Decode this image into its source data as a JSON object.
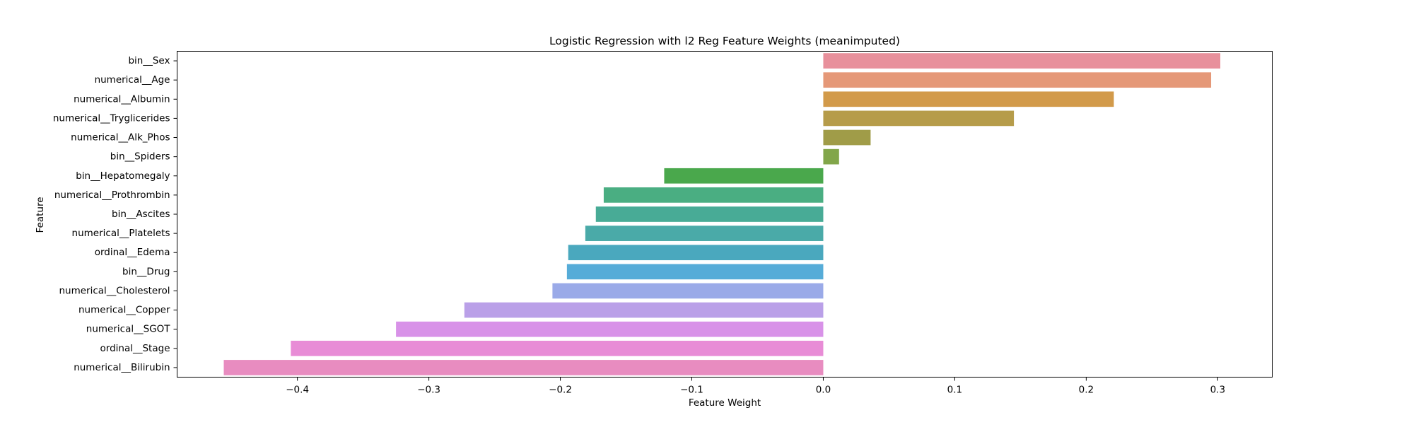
{
  "chart_data": {
    "type": "bar",
    "orientation": "horizontal",
    "title": "Logistic Regression with l2 Reg Feature Weights (meanimputed)",
    "xlabel": "Feature Weight",
    "ylabel": "Feature",
    "xlim": [
      -0.4915,
      0.3415
    ],
    "x_ticks": [
      -0.4,
      -0.3,
      -0.2,
      -0.1,
      0.0,
      0.1,
      0.2,
      0.3
    ],
    "x_tick_labels": [
      "−0.4",
      "−0.3",
      "−0.2",
      "−0.1",
      "0.0",
      "0.1",
      "0.2",
      "0.3"
    ],
    "grid": false,
    "categories": [
      "bin__Sex",
      "numerical__Age",
      "numerical__Albumin",
      "numerical__Tryglicerides",
      "numerical__Alk_Phos",
      "bin__Spiders",
      "bin__Hepatomegaly",
      "numerical__Prothrombin",
      "bin__Ascites",
      "numerical__Platelets",
      "ordinal__Edema",
      "bin__Drug",
      "numerical__Cholesterol",
      "numerical__Copper",
      "numerical__SGOT",
      "ordinal__Stage",
      "numerical__Bilirubin"
    ],
    "values": [
      0.302,
      0.295,
      0.221,
      0.145,
      0.036,
      0.012,
      -0.121,
      -0.167,
      -0.173,
      -0.181,
      -0.194,
      -0.195,
      -0.206,
      -0.273,
      -0.325,
      -0.405,
      -0.456
    ],
    "colors": [
      "#e8909c",
      "#e59878",
      "#d29a4a",
      "#b69c4a",
      "#a09c48",
      "#82a64a",
      "#4aa84c",
      "#4aae82",
      "#48ab96",
      "#4aaaa8",
      "#4aa8be",
      "#56acd8",
      "#9aaae8",
      "#baa0e8",
      "#d892e8",
      "#e88cd6",
      "#e88cc0"
    ]
  }
}
